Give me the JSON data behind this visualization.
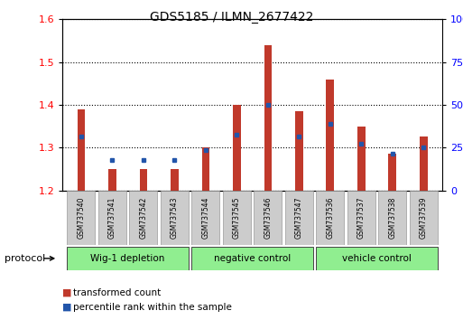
{
  "title": "GDS5185 / ILMN_2677422",
  "samples": [
    "GSM737540",
    "GSM737541",
    "GSM737542",
    "GSM737543",
    "GSM737544",
    "GSM737545",
    "GSM737546",
    "GSM737547",
    "GSM737536",
    "GSM737537",
    "GSM737538",
    "GSM737539"
  ],
  "red_values": [
    1.39,
    1.25,
    1.25,
    1.25,
    1.3,
    1.4,
    1.54,
    1.385,
    1.46,
    1.35,
    1.285,
    1.325
  ],
  "blue_values": [
    1.325,
    1.27,
    1.27,
    1.27,
    1.295,
    1.33,
    1.4,
    1.325,
    1.355,
    1.31,
    1.285,
    1.3
  ],
  "y_min": 1.2,
  "y_max": 1.6,
  "y_ticks": [
    1.2,
    1.3,
    1.4,
    1.5,
    1.6
  ],
  "right_y_ticks": [
    0,
    25,
    50,
    75,
    100
  ],
  "right_y_labels": [
    "0",
    "25",
    "50",
    "75",
    "100%"
  ],
  "bar_color": "#C0392B",
  "blue_color": "#2255AA",
  "groups": [
    {
      "label": "Wig-1 depletion",
      "start": 0,
      "end": 3,
      "color": "#90EE90"
    },
    {
      "label": "negative control",
      "start": 4,
      "end": 7,
      "color": "#90EE90"
    },
    {
      "label": "vehicle control",
      "start": 8,
      "end": 11,
      "color": "#90EE90"
    }
  ],
  "protocol_label": "protocol",
  "legend_red": "transformed count",
  "legend_blue": "percentile rank within the sample",
  "bar_width": 0.25,
  "title_fontsize": 10
}
